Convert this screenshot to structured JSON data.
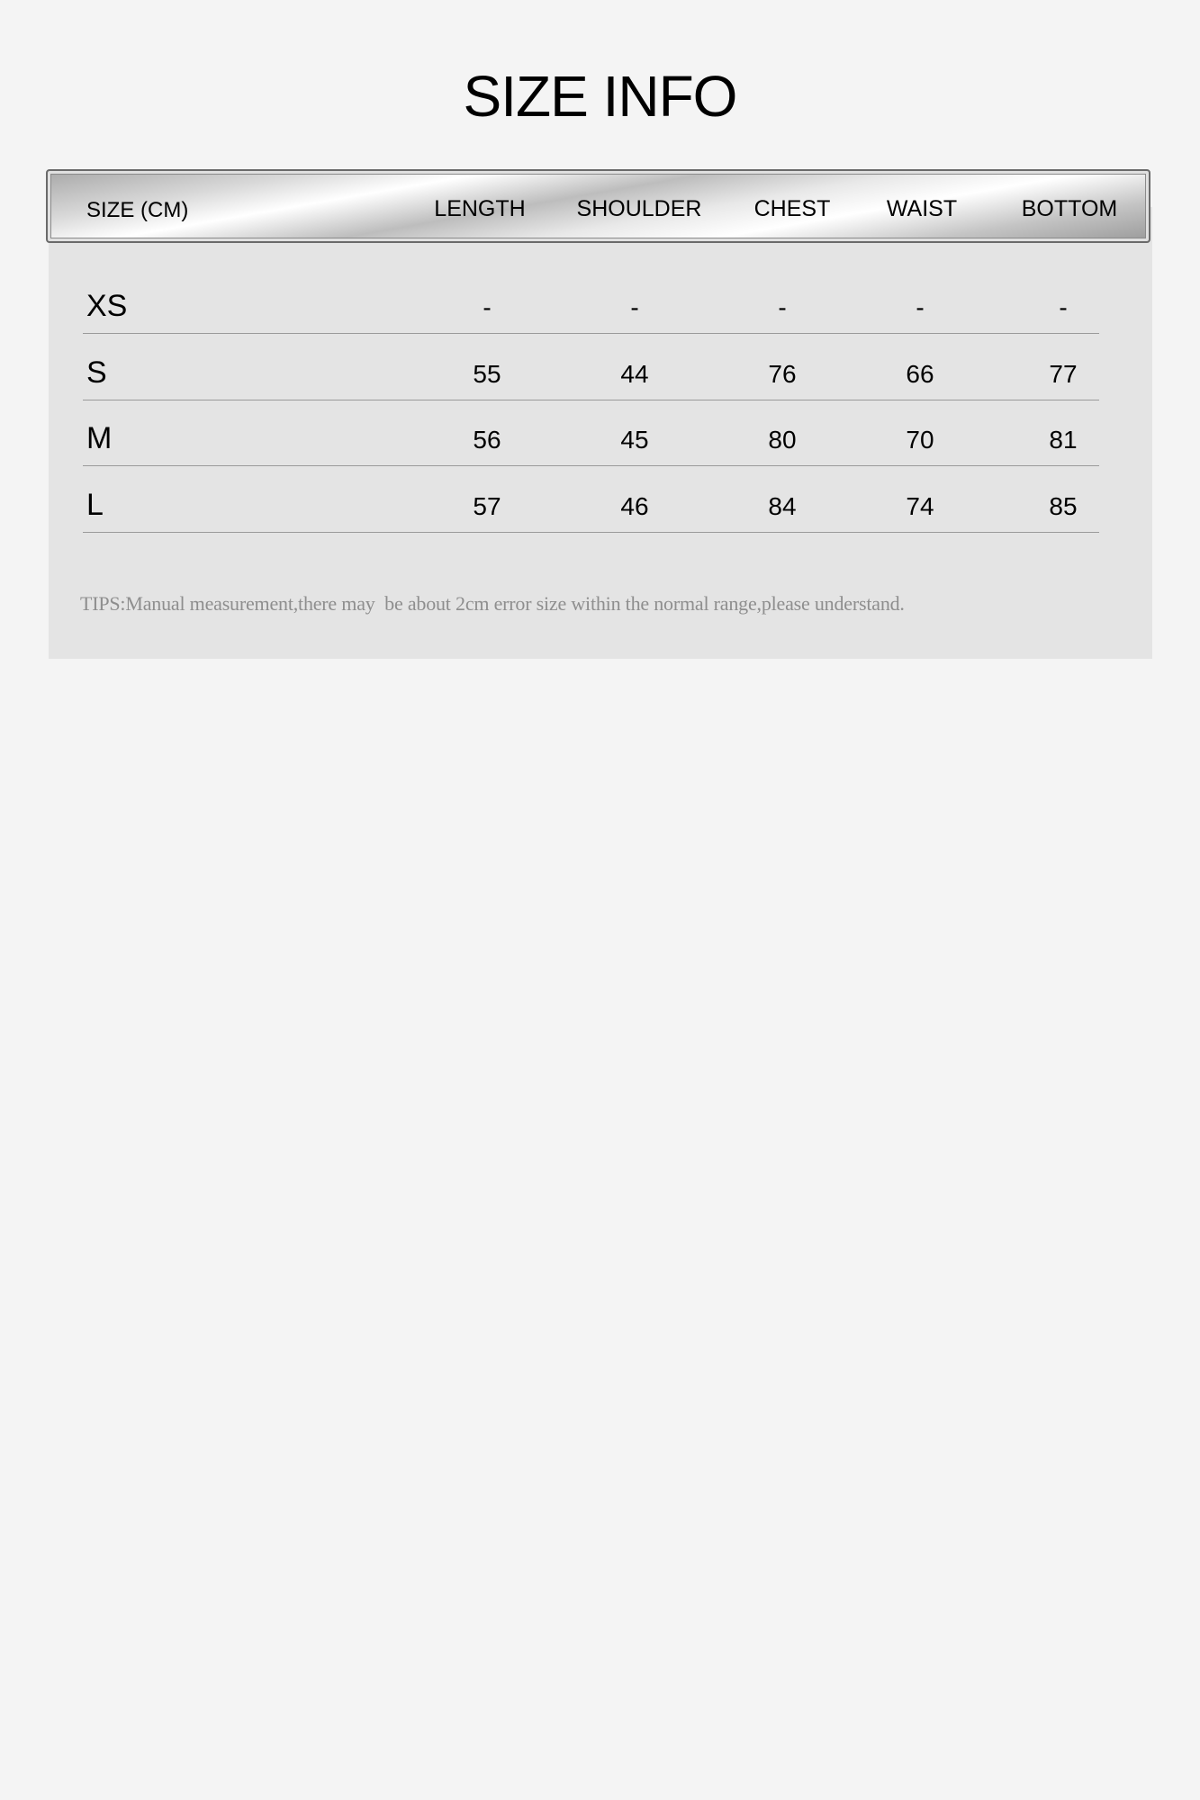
{
  "title": "SIZE INFO",
  "table": {
    "headers": [
      "SIZE (CM)",
      "LENGTH",
      "SHOULDER",
      "CHEST",
      "WAIST",
      "BOTTOM"
    ],
    "rows": [
      {
        "size": "XS",
        "values": [
          "-",
          "-",
          "-",
          "-",
          "-"
        ]
      },
      {
        "size": "S",
        "values": [
          "55",
          "44",
          "76",
          "66",
          "77"
        ]
      },
      {
        "size": "M",
        "values": [
          "56",
          "45",
          "80",
          "70",
          "81"
        ]
      },
      {
        "size": "L",
        "values": [
          "57",
          "46",
          "84",
          "74",
          "85"
        ]
      }
    ]
  },
  "tips": "TIPS:Manual measurement,there may  be about 2cm error size within the normal range,please understand."
}
